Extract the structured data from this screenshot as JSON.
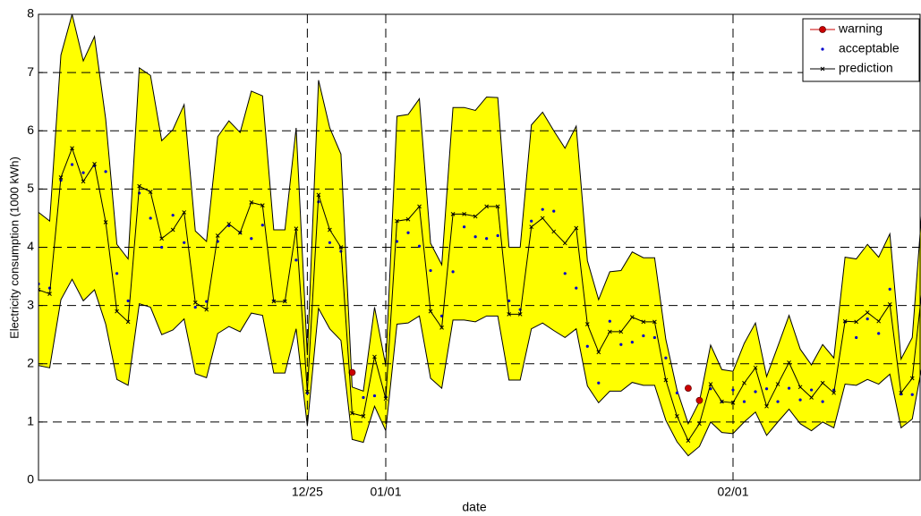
{
  "chart_data": {
    "type": "line",
    "xlabel": "date",
    "ylabel": "Electricity consumption (1000 kWh)",
    "x": [
      0,
      1,
      2,
      3,
      4,
      5,
      6,
      7,
      8,
      9,
      10,
      11,
      12,
      13,
      14,
      15,
      16,
      17,
      18,
      19,
      20,
      21,
      22,
      23,
      24,
      25,
      26,
      27,
      28,
      29,
      30,
      31,
      32,
      33,
      34,
      35,
      36,
      37,
      38,
      39,
      40,
      41,
      42,
      43,
      44,
      45,
      46,
      47,
      48,
      49,
      50,
      51,
      52,
      53,
      54,
      55,
      56,
      57,
      58,
      59,
      60,
      61,
      62,
      63,
      64,
      65,
      66,
      67,
      68,
      69,
      70,
      71,
      72,
      73,
      74,
      75,
      76,
      77,
      78,
      79
    ],
    "xlim": [
      0,
      78.7
    ],
    "xticks": [
      {
        "value": 24,
        "label": "12/25"
      },
      {
        "value": 31,
        "label": "01/01"
      },
      {
        "value": 62,
        "label": "02/01"
      }
    ],
    "ylim": [
      0,
      8
    ],
    "yticks": [
      0,
      1,
      2,
      3,
      4,
      5,
      6,
      7,
      8
    ],
    "grid": true,
    "legend": "upper right",
    "band": {
      "color": "#ffff00",
      "upper": [
        4.6,
        4.45,
        7.3,
        8.0,
        7.2,
        7.62,
        6.2,
        4.05,
        3.8,
        7.08,
        6.95,
        5.83,
        6.02,
        6.45,
        4.28,
        4.1,
        5.9,
        6.17,
        5.97,
        6.68,
        6.6,
        4.3,
        4.3,
        6.05,
        2.15,
        6.87,
        6.05,
        5.6,
        1.6,
        1.53,
        2.97,
        1.97,
        6.25,
        6.28,
        6.55,
        4.07,
        3.7,
        6.4,
        6.4,
        6.35,
        6.58,
        6.57,
        4.0,
        4.0,
        6.1,
        6.32,
        6.0,
        5.7,
        6.08,
        3.77,
        3.1,
        3.58,
        3.6,
        3.92,
        3.82,
        3.82,
        2.42,
        1.55,
        0.97,
        1.35,
        2.32,
        1.9,
        1.87,
        2.35,
        2.7,
        1.78,
        2.3,
        2.83,
        2.25,
        1.98,
        2.33,
        2.1,
        3.83,
        3.8,
        4.05,
        3.83,
        4.23,
        2.08,
        2.45,
        5.0
      ],
      "lower": [
        1.97,
        1.93,
        3.1,
        3.45,
        3.08,
        3.27,
        2.68,
        1.73,
        1.63,
        3.03,
        2.97,
        2.5,
        2.58,
        2.77,
        1.83,
        1.76,
        2.52,
        2.64,
        2.55,
        2.87,
        2.83,
        1.84,
        1.84,
        2.6,
        0.93,
        2.95,
        2.6,
        2.4,
        0.7,
        0.65,
        1.27,
        0.85,
        2.68,
        2.7,
        2.82,
        1.75,
        1.58,
        2.75,
        2.75,
        2.72,
        2.82,
        2.82,
        1.72,
        1.72,
        2.6,
        2.7,
        2.57,
        2.45,
        2.6,
        1.62,
        1.33,
        1.53,
        1.53,
        1.68,
        1.63,
        1.63,
        1.03,
        0.66,
        0.42,
        0.58,
        1.0,
        0.82,
        0.8,
        1.0,
        1.17,
        0.77,
        1.0,
        1.22,
        0.97,
        0.85,
        1.0,
        0.9,
        1.65,
        1.63,
        1.73,
        1.65,
        1.82,
        0.9,
        1.05,
        2.1
      ]
    },
    "series": [
      {
        "name": "warning",
        "color": "#cc0000",
        "style": "line-marker",
        "marker": "o",
        "plot": "marker",
        "values": [
          null,
          null,
          null,
          null,
          null,
          null,
          null,
          null,
          null,
          null,
          null,
          null,
          null,
          null,
          null,
          null,
          null,
          null,
          null,
          null,
          null,
          null,
          null,
          null,
          null,
          null,
          null,
          null,
          1.85,
          null,
          null,
          null,
          null,
          null,
          null,
          null,
          null,
          null,
          null,
          null,
          null,
          null,
          null,
          null,
          null,
          null,
          null,
          null,
          null,
          null,
          null,
          null,
          null,
          null,
          null,
          null,
          null,
          null,
          1.58,
          1.37,
          null,
          null,
          null,
          null,
          null,
          null,
          null,
          null,
          null,
          null,
          null,
          null,
          null,
          null,
          null,
          null,
          null,
          null,
          null,
          null
        ]
      },
      {
        "name": "acceptable",
        "color": "#0000cc",
        "style": "marker",
        "marker": ".",
        "plot": "marker",
        "values": [
          3.37,
          3.3,
          5.15,
          5.42,
          5.28,
          5.4,
          5.3,
          3.55,
          3.08,
          4.93,
          4.5,
          4.0,
          4.55,
          4.08,
          2.97,
          3.07,
          4.1,
          4.37,
          4.25,
          4.15,
          4.38,
          3.08,
          3.08,
          3.78,
          1.5,
          4.78,
          4.08,
          3.93,
          null,
          1.42,
          1.45,
          1.43,
          4.1,
          4.25,
          4.02,
          3.6,
          2.82,
          3.58,
          4.35,
          4.18,
          4.15,
          4.2,
          3.08,
          2.93,
          4.45,
          4.65,
          4.62,
          3.55,
          3.3,
          2.3,
          1.67,
          2.73,
          2.33,
          2.37,
          2.48,
          2.45,
          2.1,
          1.5,
          null,
          null,
          1.57,
          1.35,
          1.55,
          1.35,
          1.52,
          1.57,
          1.35,
          1.58,
          1.38,
          1.55,
          1.35,
          1.55,
          2.72,
          2.45,
          2.77,
          2.52,
          3.28,
          1.48,
          1.47,
          null
        ]
      },
      {
        "name": "prediction",
        "color": "#000000",
        "style": "line-marker",
        "marker": "x",
        "plot": "line-marker",
        "values": [
          3.27,
          3.2,
          5.2,
          5.7,
          5.13,
          5.43,
          4.43,
          2.9,
          2.72,
          5.05,
          4.95,
          4.15,
          4.3,
          4.6,
          3.05,
          2.93,
          4.2,
          4.4,
          4.25,
          4.77,
          4.72,
          3.07,
          3.07,
          4.32,
          1.52,
          4.9,
          4.3,
          4.0,
          1.15,
          1.1,
          2.12,
          1.4,
          4.45,
          4.48,
          4.7,
          2.9,
          2.62,
          4.57,
          4.57,
          4.53,
          4.7,
          4.7,
          2.85,
          2.85,
          4.35,
          4.5,
          4.27,
          4.07,
          4.33,
          2.68,
          2.2,
          2.55,
          2.55,
          2.8,
          2.72,
          2.72,
          1.72,
          1.1,
          0.68,
          0.97,
          1.65,
          1.35,
          1.33,
          1.67,
          1.93,
          1.27,
          1.65,
          2.02,
          1.6,
          1.42,
          1.67,
          1.5,
          2.73,
          2.72,
          2.88,
          2.73,
          3.02,
          1.5,
          1.75,
          3.5
        ]
      }
    ]
  }
}
